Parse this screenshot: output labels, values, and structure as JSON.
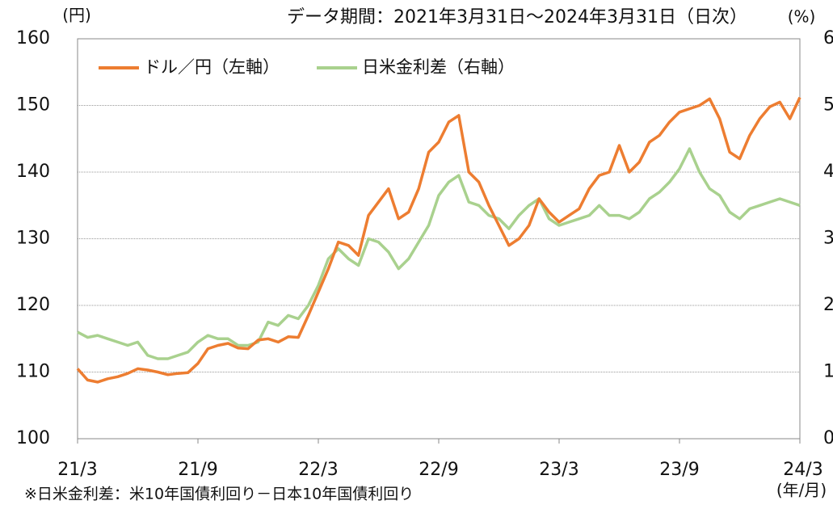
{
  "chart_data": {
    "type": "line",
    "title": "データ期間：2021年3月31日～2024年3月31日（日次）",
    "y_label": "(円)",
    "y2_label": "(%)",
    "x_label": "(年/月)",
    "note": "※日米金利差：米10年国債利回り－日本10年国債利回り",
    "categories": [
      "21/3",
      null,
      null,
      null,
      null,
      null,
      null,
      null,
      null,
      null,
      null,
      null,
      "21/9",
      null,
      null,
      null,
      null,
      null,
      null,
      null,
      null,
      null,
      null,
      null,
      "22/3",
      null,
      null,
      null,
      null,
      null,
      null,
      null,
      null,
      null,
      null,
      null,
      "22/9",
      null,
      null,
      null,
      null,
      null,
      null,
      null,
      null,
      null,
      null,
      null,
      "23/3",
      null,
      null,
      null,
      null,
      null,
      null,
      null,
      null,
      null,
      null,
      null,
      "23/9",
      null,
      null,
      null,
      null,
      null,
      null,
      null,
      null,
      null,
      null,
      null,
      "24/3"
    ],
    "series": [
      {
        "name": "ドル／円（左軸）",
        "color": "#ed7d31",
        "axis": "y",
        "values": [
          110.5,
          108.8,
          108.5,
          109.0,
          109.3,
          109.8,
          110.5,
          110.3,
          110.0,
          109.6,
          109.8,
          109.9,
          111.3,
          113.5,
          114.0,
          114.3,
          113.6,
          113.5,
          114.8,
          115.0,
          114.5,
          115.3,
          115.2,
          118.5,
          122.0,
          125.5,
          129.5,
          129.0,
          127.5,
          133.5,
          135.5,
          137.5,
          133.0,
          134.0,
          137.5,
          143.0,
          144.5,
          147.5,
          148.5,
          140.0,
          138.5,
          135.0,
          132.0,
          129.0,
          130.0,
          132.0,
          136.0,
          134.0,
          132.5,
          133.5,
          134.5,
          137.5,
          139.5,
          140.0,
          144.0,
          140.0,
          141.5,
          144.5,
          145.5,
          147.5,
          149.0,
          149.5,
          150.0,
          151.0,
          148.0,
          143.0,
          142.0,
          145.5,
          148.0,
          149.8,
          150.5,
          148.0,
          151.2
        ]
      },
      {
        "name": "日米金利差（右軸）",
        "color": "#a9d18e",
        "axis": "y2",
        "values": [
          1.6,
          1.52,
          1.55,
          1.5,
          1.45,
          1.4,
          1.45,
          1.25,
          1.2,
          1.2,
          1.25,
          1.3,
          1.45,
          1.55,
          1.5,
          1.5,
          1.4,
          1.4,
          1.45,
          1.75,
          1.7,
          1.85,
          1.8,
          2.0,
          2.3,
          2.7,
          2.85,
          2.7,
          2.6,
          3.0,
          2.95,
          2.8,
          2.55,
          2.7,
          2.95,
          3.2,
          3.65,
          3.85,
          3.95,
          3.55,
          3.5,
          3.35,
          3.3,
          3.15,
          3.35,
          3.5,
          3.6,
          3.3,
          3.2,
          3.25,
          3.3,
          3.35,
          3.5,
          3.35,
          3.35,
          3.3,
          3.4,
          3.6,
          3.7,
          3.85,
          4.05,
          4.35,
          4.0,
          3.75,
          3.65,
          3.4,
          3.3,
          3.45,
          3.5,
          3.55,
          3.6,
          3.55,
          3.5
        ]
      }
    ],
    "ylim": [
      100,
      160
    ],
    "yticks": [
      100,
      110,
      120,
      130,
      140,
      150,
      160
    ],
    "y2lim": [
      0,
      6
    ],
    "y2ticks": [
      0,
      1,
      2,
      3,
      4,
      5,
      6
    ],
    "grid": true,
    "legend": "top-left"
  }
}
